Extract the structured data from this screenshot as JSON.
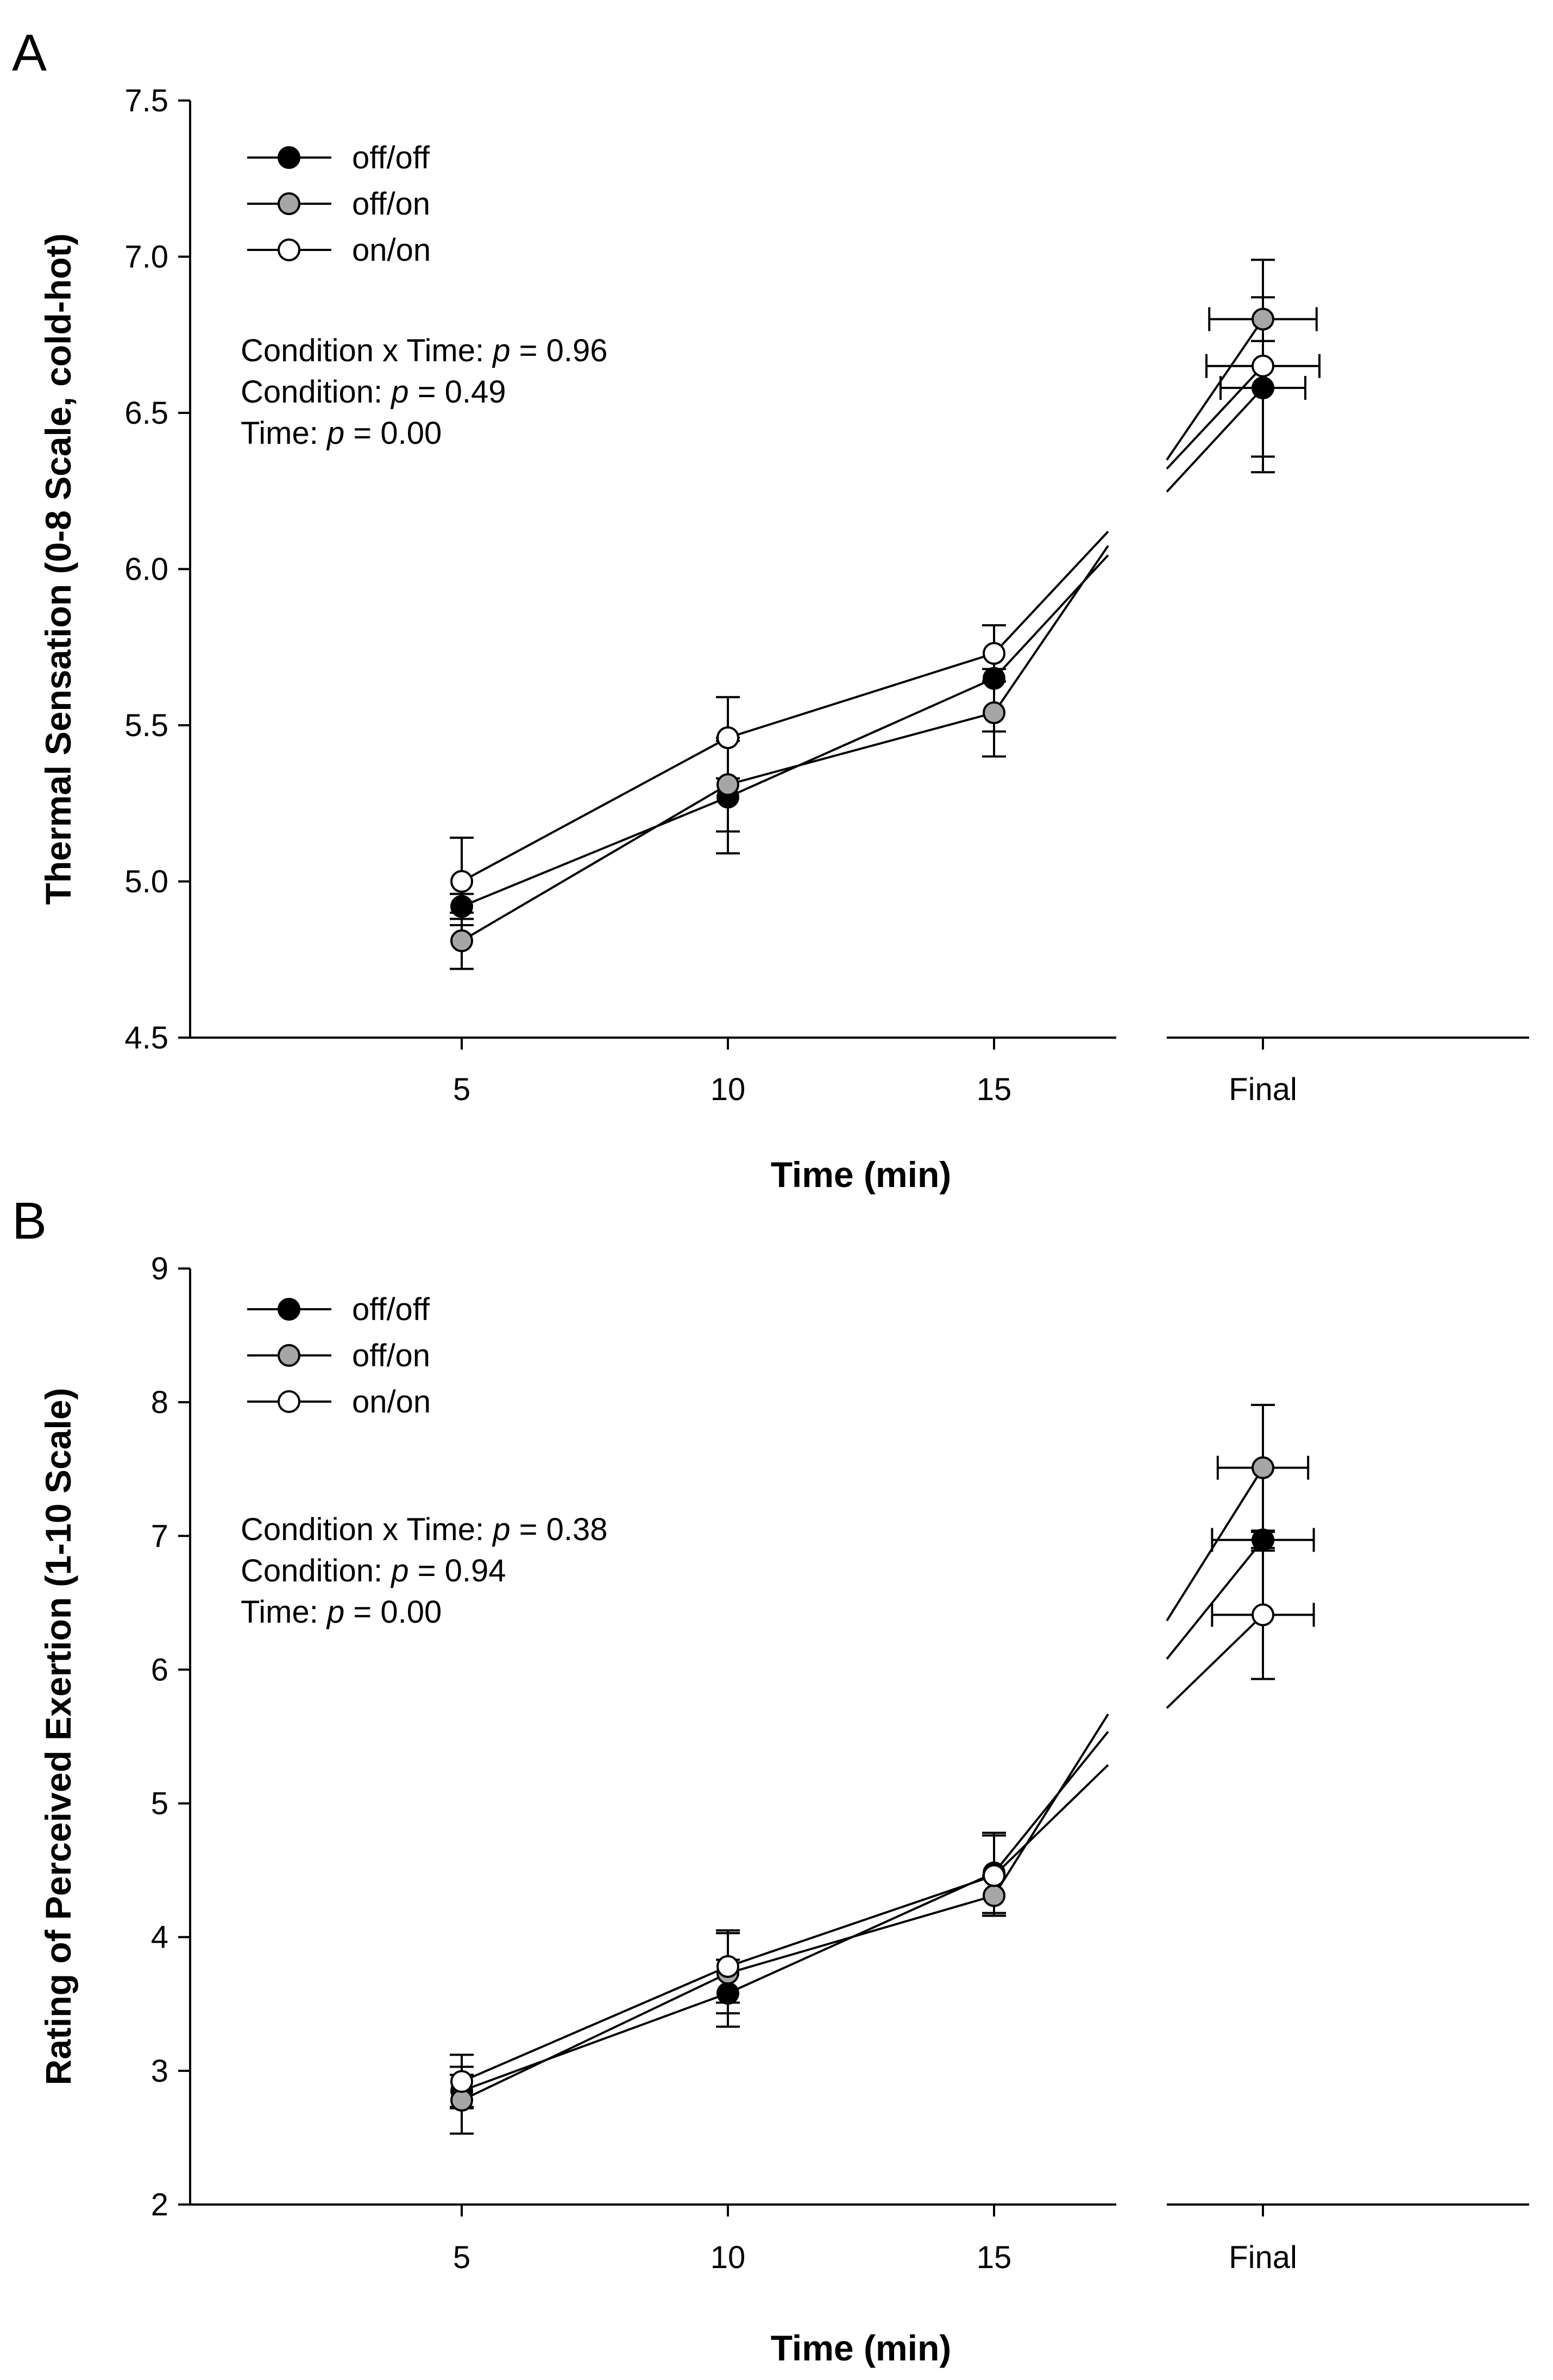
{
  "chart_data": [
    {
      "type": "line",
      "panel_label": "A",
      "xlabel": "Time (min)",
      "ylabel": "Thermal Sensation (0-8 Scale, cold-hot)",
      "ylim": [
        4.5,
        7.5
      ],
      "yticks": [
        "4.5",
        "5.0",
        "5.5",
        "6.0",
        "6.5",
        "7.0",
        "7.5"
      ],
      "categories": [
        "5",
        "10",
        "15",
        "Final"
      ],
      "axis_break": "between 15 and Final",
      "legend": {
        "position": "top-left",
        "entries": [
          "off/off",
          "off/on",
          "on/on"
        ]
      },
      "stats": [
        {
          "label": "Condition x Time: ",
          "italic": "p",
          "value": " = 0.96"
        },
        {
          "label": "Condition: ",
          "italic": "p",
          "value": " = 0.49"
        },
        {
          "label": "Time: ",
          "italic": "p",
          "value": " = 0.00"
        }
      ],
      "series": [
        {
          "name": "off/off",
          "marker": "filled-black",
          "values": [
            4.92,
            5.27,
            5.65,
            6.58
          ],
          "error": [
            0.04,
            0.18,
            0.17,
            0.22
          ],
          "final_x_error": 0.15
        },
        {
          "name": "off/on",
          "marker": "filled-gray",
          "values": [
            4.81,
            5.31,
            5.54,
            6.8
          ],
          "error": [
            0.09,
            0.15,
            0.14,
            0.07
          ],
          "final_x_error": 0.19
        },
        {
          "name": "on/on",
          "marker": "open",
          "values": [
            5.0,
            5.46,
            5.73,
            6.65
          ],
          "error": [
            0.14,
            0.13,
            0.09,
            0.34
          ],
          "final_x_error": 0.2
        }
      ]
    },
    {
      "type": "line",
      "panel_label": "B",
      "xlabel": "Time (min)",
      "ylabel": "Rating of Perceived Exertion (1-10 Scale)",
      "ylim": [
        2,
        9
      ],
      "yticks": [
        "2",
        "3",
        "4",
        "5",
        "6",
        "7",
        "8",
        "9"
      ],
      "categories": [
        "5",
        "10",
        "15",
        "Final"
      ],
      "axis_break": "between 15 and Final",
      "legend": {
        "position": "top-left",
        "entries": [
          "off/off",
          "off/on",
          "on/on"
        ]
      },
      "stats": [
        {
          "label": "Condition x Time: ",
          "italic": "p",
          "value": " = 0.38"
        },
        {
          "label": "Condition: ",
          "italic": "p",
          "value": " = 0.94"
        },
        {
          "label": "Time: ",
          "italic": "p",
          "value": " = 0.00"
        }
      ],
      "series": [
        {
          "name": "off/off",
          "marker": "filled-black",
          "values": [
            2.85,
            3.58,
            4.48,
            6.97
          ],
          "error": [
            0.12,
            0.25,
            0.3,
            0.06
          ],
          "final_x_error": 0.18
        },
        {
          "name": "off/on",
          "marker": "filled-gray",
          "values": [
            2.78,
            3.73,
            4.31,
            7.51
          ],
          "error": [
            0.25,
            0.3,
            0.15,
            0.47
          ],
          "final_x_error": 0.16
        },
        {
          "name": "on/on",
          "marker": "open",
          "values": [
            2.92,
            3.78,
            4.46,
            6.41
          ],
          "error": [
            0.2,
            0.27,
            0.3,
            0.48
          ],
          "final_x_error": 0.18
        }
      ]
    }
  ]
}
